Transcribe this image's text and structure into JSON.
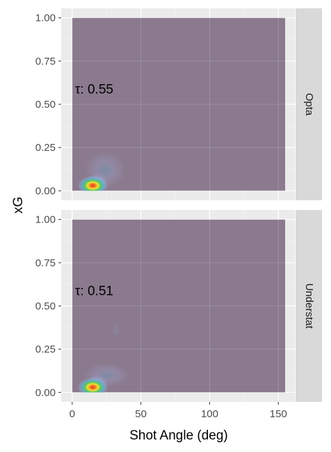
{
  "chart_data": {
    "type": "density",
    "xlabel": "Shot Angle (deg)",
    "ylabel": "xG",
    "xlim": [
      -8,
      162
    ],
    "ylim": [
      -0.055,
      1.055
    ],
    "x_ticks": [
      0,
      50,
      100,
      150
    ],
    "x_tick_labels": [
      "0",
      "50",
      "100",
      "150"
    ],
    "y_ticks": [
      0,
      0.25,
      0.5,
      0.75,
      1
    ],
    "y_tick_labels": [
      "0.00",
      "0.25",
      "0.50",
      "0.75",
      "1.00"
    ],
    "density_extent": {
      "x": [
        0,
        155
      ],
      "y": [
        0,
        1
      ]
    },
    "grid": true,
    "colors": {
      "panel_bg": "#ebebeb",
      "strip_bg": "#d9d9d9",
      "density_base": "#8b7a8e",
      "low": "#a9b4e8",
      "mid": "#55b8d4",
      "high_green": "#58c85a",
      "high_yellow": "#f2e23a",
      "peak": "#e83a1e"
    },
    "panels": [
      {
        "facet": "Opta",
        "annotation": {
          "text": "τ: 0.55",
          "x": 16,
          "y": 0.59
        },
        "peak": {
          "x": 15,
          "y": 0.03
        },
        "hotspots": [
          {
            "x": 24,
            "y": 0.12,
            "spread_x": 30,
            "spread_y": 0.22,
            "intensity": 0.25
          },
          {
            "x": 18,
            "y": 0.05,
            "spread_x": 16,
            "spread_y": 0.1,
            "intensity": 0.5
          }
        ]
      },
      {
        "facet": "Understat",
        "annotation": {
          "text": "τ: 0.51",
          "x": 16,
          "y": 0.59
        },
        "peak": {
          "x": 15,
          "y": 0.03
        },
        "hotspots": [
          {
            "x": 25,
            "y": 0.1,
            "spread_x": 34,
            "spread_y": 0.14,
            "intensity": 0.25
          },
          {
            "x": 18,
            "y": 0.05,
            "spread_x": 16,
            "spread_y": 0.1,
            "intensity": 0.5
          },
          {
            "x": 32,
            "y": 0.36,
            "spread_x": 6,
            "spread_y": 0.08,
            "intensity": 0.12
          }
        ]
      }
    ]
  }
}
